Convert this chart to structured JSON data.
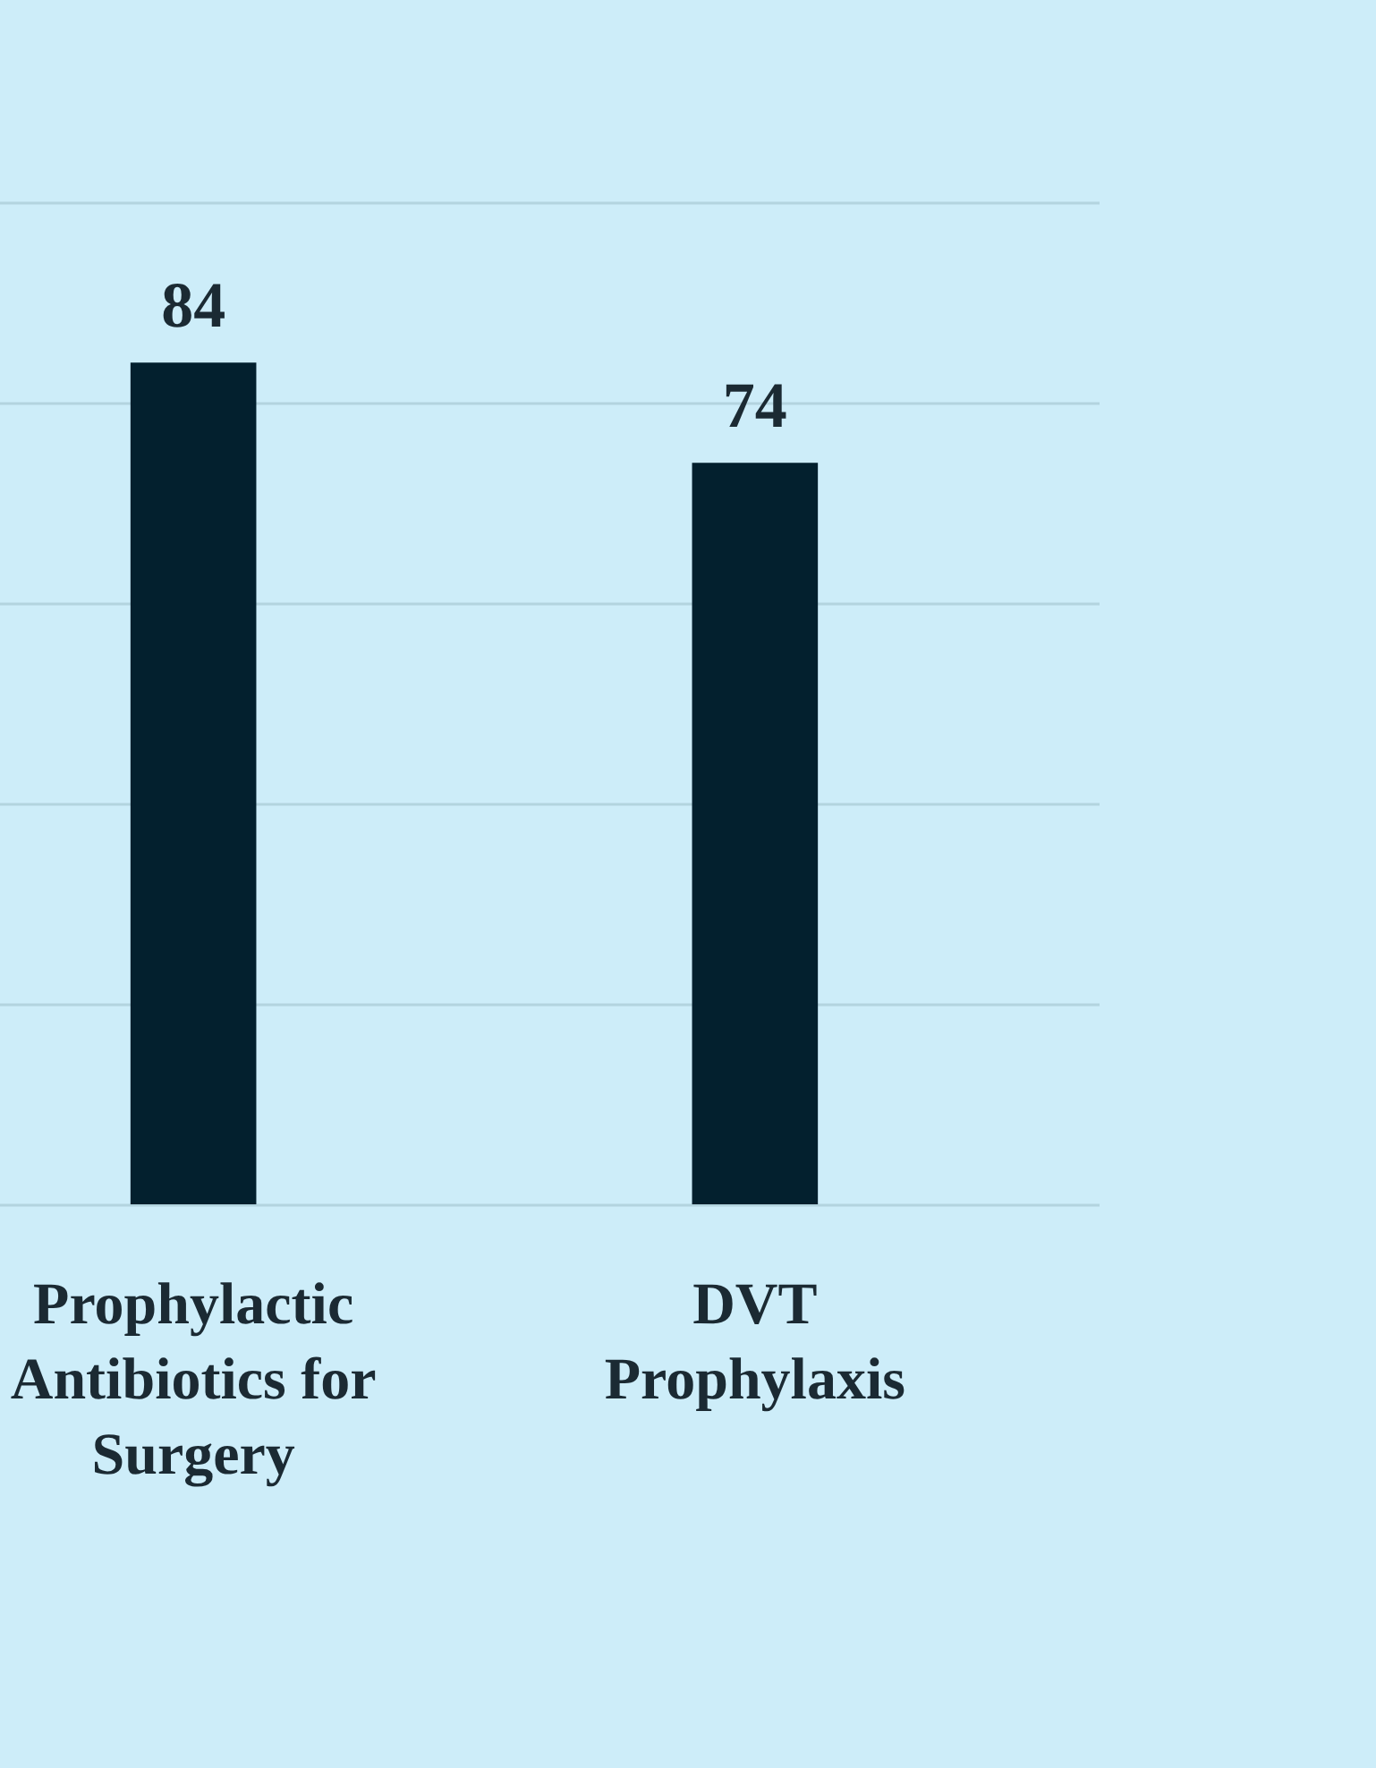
{
  "chart_data": {
    "type": "bar",
    "categories": [
      "Prophylactic Antibiotics for Surgery",
      "DVT Prophylaxis"
    ],
    "values": [
      84,
      74
    ],
    "color": "#03202e",
    "data_labels": true,
    "ylim": [
      0,
      100
    ],
    "yticks": [
      {
        "value": 0,
        "label": null
      },
      {
        "value": 20,
        "label": null
      },
      {
        "value": 40,
        "label": null
      },
      {
        "value": 60,
        "label": null
      },
      {
        "value": 80,
        "label": null
      },
      {
        "value": 100,
        "label": null
      }
    ],
    "tick_labels": "x",
    "grid": "y"
  }
}
